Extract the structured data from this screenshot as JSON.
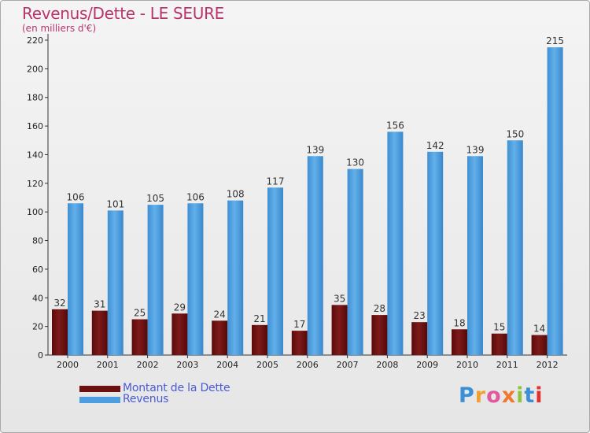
{
  "title": "Revenus/Dette - LE SEURE",
  "subtitle": "(en milliers d'€)",
  "logo": {
    "text": "Proxiti",
    "letter_colors": [
      "#3a8fd6",
      "#f0a030",
      "#e05aa0",
      "#f07830",
      "#8cc63e",
      "#3a8fd6",
      "#e03030"
    ]
  },
  "colors": {
    "debt": "#6b0f0f",
    "revenue": "#4d9ee0",
    "title": "#b8356b",
    "legend_text": "#4a5bd4"
  },
  "chart_data": {
    "type": "bar",
    "categories": [
      "2000",
      "2001",
      "2002",
      "2003",
      "2004",
      "2005",
      "2006",
      "2007",
      "2008",
      "2009",
      "2010",
      "2011",
      "2012"
    ],
    "series": [
      {
        "name": "Montant de la Dette",
        "values": [
          32,
          31,
          25,
          29,
          24,
          21,
          17,
          35,
          28,
          23,
          18,
          15,
          14
        ]
      },
      {
        "name": "Revenus",
        "values": [
          106,
          101,
          105,
          106,
          108,
          117,
          139,
          130,
          156,
          142,
          139,
          150,
          215
        ]
      }
    ],
    "yticks": [
      0,
      20,
      40,
      60,
      80,
      100,
      120,
      140,
      160,
      180,
      200,
      220
    ],
    "ylim": [
      0,
      220
    ],
    "grid": false,
    "legend_position": "bottom-left",
    "data_labels": true
  }
}
